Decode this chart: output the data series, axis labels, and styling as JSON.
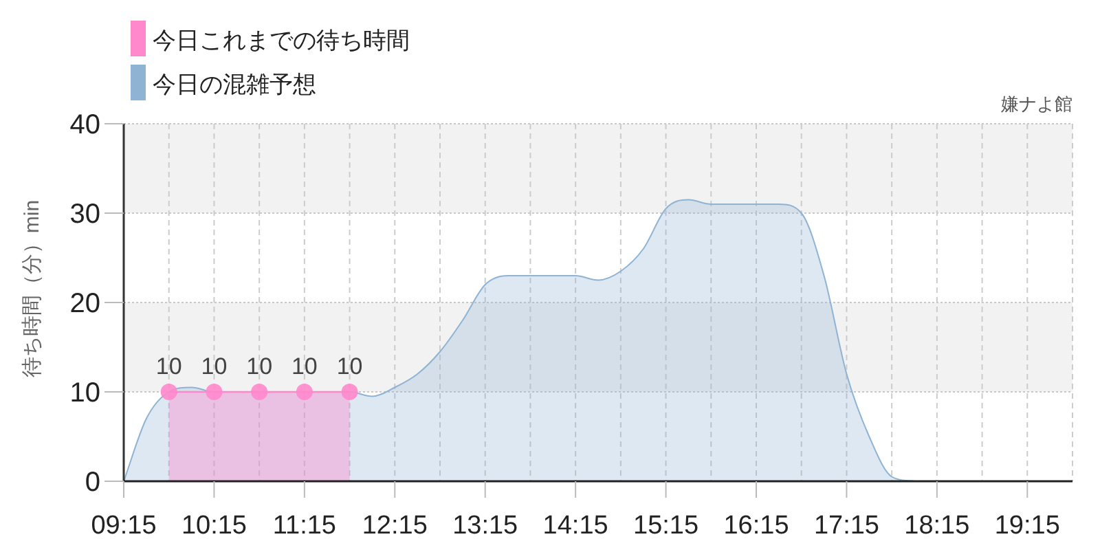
{
  "chart_data": {
    "type": "area",
    "title": "嫌ナよ館",
    "ylabel": "待ち時間（分）min",
    "xlim": [
      9.25,
      19.75
    ],
    "xticks": [
      {
        "value": 9.25,
        "label": "09:15"
      },
      {
        "value": 9.75,
        "label": null
      },
      {
        "value": 10.25,
        "label": "10:15"
      },
      {
        "value": 10.75,
        "label": null
      },
      {
        "value": 11.25,
        "label": "11:15"
      },
      {
        "value": 11.75,
        "label": null
      },
      {
        "value": 12.25,
        "label": "12:15"
      },
      {
        "value": 12.75,
        "label": null
      },
      {
        "value": 13.25,
        "label": "13:15"
      },
      {
        "value": 13.75,
        "label": null
      },
      {
        "value": 14.25,
        "label": "14:15"
      },
      {
        "value": 14.75,
        "label": null
      },
      {
        "value": 15.25,
        "label": "15:15"
      },
      {
        "value": 15.75,
        "label": null
      },
      {
        "value": 16.25,
        "label": "16:15"
      },
      {
        "value": 16.75,
        "label": null
      },
      {
        "value": 17.25,
        "label": "17:15"
      },
      {
        "value": 17.75,
        "label": null
      },
      {
        "value": 18.25,
        "label": "18:15"
      },
      {
        "value": 18.75,
        "label": null
      },
      {
        "value": 19.25,
        "label": "19:15"
      },
      {
        "value": 19.75,
        "label": null
      }
    ],
    "ylim": [
      0,
      40
    ],
    "yticks": [
      0,
      10,
      20,
      30,
      40
    ],
    "grid": true,
    "legend": "top left",
    "bands": [
      {
        "axis": "y",
        "from": 10,
        "to": 20,
        "color": "#f2f2f2"
      },
      {
        "axis": "y",
        "from": 30,
        "to": 40,
        "color": "#f2f2f2"
      }
    ],
    "series": [
      {
        "name": "今日これまでの待ち時間",
        "color": "#ff88cc",
        "marker": "circle",
        "x": [
          9.75,
          10.25,
          10.75,
          11.25,
          11.75
        ],
        "values": [
          10,
          10,
          10,
          10,
          10
        ],
        "value_labels": [
          "10",
          "10",
          "10",
          "10",
          "10"
        ]
      },
      {
        "name": "今日の混雑予想",
        "color": "#8fb3d3",
        "x": [
          9.25,
          9.5,
          9.75,
          10.0,
          10.25,
          10.5,
          10.75,
          11.0,
          11.25,
          11.5,
          11.75,
          12.0,
          12.25,
          12.5,
          12.75,
          13.0,
          13.25,
          13.5,
          13.75,
          14.0,
          14.25,
          14.5,
          14.75,
          15.0,
          15.25,
          15.5,
          15.75,
          16.0,
          16.25,
          16.5,
          16.75,
          17.0,
          17.25,
          17.5,
          17.75,
          18.0
        ],
        "values": [
          0,
          7,
          10,
          10.5,
          10,
          10,
          10,
          10,
          10,
          10,
          10,
          9.5,
          10.5,
          12,
          14.5,
          18,
          22,
          23,
          23,
          23,
          23,
          22.5,
          23.5,
          26,
          30.5,
          31.5,
          31,
          31,
          31,
          31,
          30,
          23,
          12,
          5,
          0.5,
          0
        ]
      }
    ]
  }
}
